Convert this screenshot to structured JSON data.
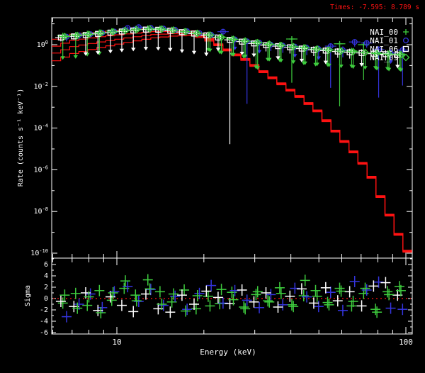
{
  "title": {
    "text": "Times: -7.595: 8.789 s",
    "color": "#ff1212"
  },
  "legend": [
    {
      "label": "NAI_00",
      "symbol": "plus",
      "color": "#3ecc3e"
    },
    {
      "label": "NAI_01",
      "symbol": "circle",
      "color": "#3535e0"
    },
    {
      "label": "NAI_06",
      "symbol": "square",
      "color": "#ffffff"
    },
    {
      "label": "NAI_09",
      "symbol": "diamond",
      "color": "#3ecc3e"
    }
  ],
  "axes": {
    "x": {
      "label": "Energy (keV)",
      "scale": "log",
      "min": 5.95,
      "max": 105,
      "major_ticks": [
        10,
        100
      ],
      "major_labels": [
        "10",
        "100"
      ],
      "minor_ticks": [
        6,
        7,
        8,
        9,
        20,
        30,
        40,
        50,
        60,
        70,
        80,
        90
      ]
    },
    "y_main": {
      "label": "Rate (counts s⁻¹ keV⁻¹)",
      "scale": "log",
      "min_log": -10.35,
      "max_log": 1.29,
      "labeled_exponents": [
        0,
        -2,
        -4,
        -6,
        -8,
        -10
      ]
    },
    "y_sigma": {
      "label": "Sigma",
      "min": -6.6,
      "max": 7.1,
      "labeled_ticks": [
        6,
        4,
        2,
        0,
        -2,
        -4,
        -6
      ]
    }
  },
  "chart_data": {
    "type": "scatter",
    "title": "Times: -7.595: 8.789 s",
    "xlabel": "Energy (keV)",
    "ylabel_main": "Rate (counts s⁻¹ keV⁻¹)",
    "ylabel_residual": "Sigma",
    "xlim": [
      5.95,
      105
    ],
    "ylim_main_log10": [
      -10.35,
      1.29
    ],
    "ylim_residual": [
      -6.6,
      7.1
    ],
    "zero_line": {
      "value": 0,
      "color": "#ff1212",
      "style": "dotted"
    },
    "model": {
      "color": "#ff1212",
      "steps": 40,
      "anchors_logE": [
        0.775,
        0.85,
        0.95,
        1.05,
        1.13,
        1.2,
        1.26,
        1.3,
        1.335,
        1.4,
        1.45,
        1.49,
        1.57,
        1.64,
        1.7,
        1.755,
        1.8,
        1.84,
        1.885,
        1.92,
        1.96,
        1.995,
        2.021
      ],
      "anchors_logR": [
        0.2,
        0.5,
        0.63,
        0.72,
        0.77,
        0.74,
        0.66,
        0.45,
        0.17,
        -0.35,
        -0.7,
        -1.09,
        -1.84,
        -2.52,
        -3.2,
        -4.08,
        -4.8,
        -5.44,
        -6.4,
        -7.48,
        -8.6,
        -9.7,
        -10.1
      ],
      "offsets_logR_low": [
        0,
        -0.34,
        -0.68,
        -1.06
      ],
      "offsets_logR_high": [
        0,
        -0.03,
        -0.06,
        -0.09
      ],
      "converge_logE": 1.335
    },
    "series": [
      {
        "name": "NAI_00",
        "symbol": "plus",
        "color": "#3ecc3e",
        "points": [
          [
            6.5,
            2.7,
            0.07,
            1.15,
            1
          ],
          [
            7.2,
            3.0,
            0.07,
            1.15,
            1
          ],
          [
            7.9,
            3.4,
            0.08,
            1.2,
            1
          ],
          [
            8.7,
            3.9,
            0.08,
            1.2,
            1
          ],
          [
            9.6,
            4.5,
            0.75,
            1.3,
            0
          ],
          [
            10.6,
            5.1,
            0.8,
            1.25,
            0
          ],
          [
            11.6,
            5.8,
            0.8,
            1.25,
            0
          ],
          [
            12.8,
            6.3,
            0.8,
            1.2,
            0
          ],
          [
            14.1,
            6.1,
            0.8,
            1.2,
            0
          ],
          [
            15.5,
            5.3,
            0.8,
            1.25,
            0
          ],
          [
            17.1,
            4.5,
            0.78,
            1.3,
            0
          ],
          [
            18.8,
            3.7,
            0.75,
            1.3,
            0
          ],
          [
            20.7,
            3.1,
            0.15,
            1.2,
            1
          ],
          [
            22.7,
            2.35,
            0.15,
            1.25,
            1
          ],
          [
            25.0,
            1.95,
            0.14,
            1.25,
            1
          ],
          [
            27.5,
            1.5,
            0.14,
            1.3,
            1
          ],
          [
            30.3,
            1.35,
            0.05,
            1.3,
            1
          ],
          [
            33.3,
            1.05,
            0.15,
            1.3,
            1
          ],
          [
            36.6,
            0.98,
            0.15,
            1.35,
            1
          ],
          [
            40.3,
            1.87,
            0.008,
            1.2,
            0
          ],
          [
            44.3,
            0.75,
            0.14,
            1.35,
            1
          ],
          [
            48.7,
            0.6,
            0.15,
            1.4,
            1
          ],
          [
            53.6,
            0.58,
            0.15,
            1.4,
            1
          ],
          [
            59.0,
            1.1,
            0.001,
            1.25,
            0
          ],
          [
            64.9,
            0.5,
            0.15,
            1.4,
            1
          ],
          [
            71.4,
            1.0,
            0.02,
            1.3,
            0
          ],
          [
            78.5,
            0.42,
            0.15,
            1.45,
            1
          ],
          [
            86.4,
            0.38,
            0.15,
            1.45,
            1
          ],
          [
            95.0,
            0.36,
            0.15,
            1.5,
            1
          ]
        ],
        "sigma": [
          -0.8,
          0.9,
          -1.2,
          1.4,
          -0.3,
          1.8,
          0.6,
          3.3,
          1.2,
          -0.6,
          1.5,
          -1.8,
          0.4,
          -0.9,
          1.1,
          -1.5,
          0.7,
          -0.4,
          1.9,
          -1.1,
          0.5,
          1.4,
          -0.7,
          1.8,
          -1.3,
          0.9,
          -1.9,
          1.2,
          2.1
        ]
      },
      {
        "name": "NAI_01",
        "symbol": "circle",
        "color": "#3535e0",
        "points": [
          [
            6.7,
            2.4,
            0.6,
            1.4,
            0
          ],
          [
            7.4,
            2.8,
            0.65,
            1.35,
            0
          ],
          [
            8.1,
            3.2,
            0.7,
            1.3,
            0
          ],
          [
            8.9,
            3.7,
            0.72,
            1.3,
            0
          ],
          [
            9.8,
            4.3,
            0.75,
            1.3,
            0
          ],
          [
            10.9,
            6.3,
            0.8,
            1.2,
            0
          ],
          [
            11.9,
            6.9,
            0.82,
            1.18,
            0
          ],
          [
            13.1,
            6.4,
            0.82,
            1.18,
            0
          ],
          [
            14.5,
            5.9,
            0.8,
            1.2,
            0
          ],
          [
            15.9,
            5.2,
            0.8,
            1.2,
            0
          ],
          [
            17.5,
            4.4,
            0.78,
            1.25,
            0
          ],
          [
            19.3,
            3.6,
            0.75,
            1.3,
            0
          ],
          [
            21.2,
            3.0,
            0.7,
            1.3,
            0
          ],
          [
            23.3,
            4.2,
            0.75,
            1.25,
            0
          ],
          [
            25.6,
            1.8,
            0.3,
            1.3,
            1
          ],
          [
            28.2,
            1.45,
            0.001,
            1.3,
            0
          ],
          [
            31.1,
            1.25,
            0.3,
            1.3,
            1
          ],
          [
            34.1,
            1.0,
            0.5,
            1.4,
            0
          ],
          [
            37.5,
            0.9,
            0.45,
            1.4,
            0
          ],
          [
            41.3,
            0.8,
            0.3,
            1.4,
            1
          ],
          [
            45.4,
            0.7,
            0.45,
            1.45,
            0
          ],
          [
            49.9,
            0.62,
            0.3,
            1.45,
            1
          ],
          [
            54.9,
            0.85,
            0.01,
            1.35,
            0
          ],
          [
            60.5,
            0.55,
            0.45,
            1.5,
            0
          ],
          [
            66.5,
            1.35,
            0.6,
            1.25,
            0
          ],
          [
            73.2,
            1.2,
            0.6,
            1.3,
            0
          ],
          [
            80.5,
            0.58,
            0.005,
            1.45,
            0
          ],
          [
            88.6,
            0.4,
            0.3,
            1.5,
            1
          ],
          [
            97.4,
            0.55,
            0.02,
            1.5,
            0
          ]
        ],
        "sigma": [
          -3.2,
          -1.0,
          0.8,
          -1.6,
          1.2,
          2.1,
          -0.5,
          1.6,
          -1.2,
          0.4,
          -1.9,
          0.9,
          2.3,
          -0.8,
          1.4,
          -0.3,
          -1.6,
          0.7,
          -1.1,
          1.8,
          0.3,
          -1.4,
          1.1,
          -2.1,
          3.0,
          1.5,
          2.9,
          -1.7,
          -1.9
        ]
      },
      {
        "name": "NAI_06",
        "symbol": "square",
        "color": "#ffffff",
        "points": [
          [
            6.4,
            2.2,
            0.65,
            1.35,
            0
          ],
          [
            7.1,
            2.5,
            0.7,
            1.3,
            0
          ],
          [
            7.8,
            2.9,
            0.1,
            1.25,
            1
          ],
          [
            8.6,
            3.3,
            0.1,
            1.25,
            1
          ],
          [
            9.5,
            3.8,
            0.1,
            1.22,
            1
          ],
          [
            10.4,
            4.3,
            0.1,
            1.2,
            1
          ],
          [
            11.4,
            4.8,
            0.1,
            1.2,
            1
          ],
          [
            12.6,
            5.3,
            0.1,
            1.2,
            1
          ],
          [
            13.9,
            5.2,
            0.1,
            1.2,
            1
          ],
          [
            15.3,
            4.7,
            0.1,
            1.2,
            1
          ],
          [
            16.8,
            4.0,
            0.1,
            1.22,
            1
          ],
          [
            18.5,
            3.4,
            0.1,
            1.25,
            1
          ],
          [
            20.4,
            2.8,
            0.1,
            1.25,
            1
          ],
          [
            22.4,
            2.2,
            0.22,
            1.3,
            1
          ],
          [
            24.6,
            1.7,
            1e-05,
            1.3,
            0
          ],
          [
            27.1,
            1.4,
            0.22,
            1.3,
            1
          ],
          [
            29.8,
            1.15,
            0.22,
            1.3,
            1
          ],
          [
            32.8,
            0.95,
            0.5,
            1.4,
            0
          ],
          [
            36.1,
            0.85,
            0.22,
            1.35,
            1
          ],
          [
            39.7,
            0.75,
            0.5,
            1.4,
            0
          ],
          [
            43.6,
            0.65,
            0.22,
            1.4,
            1
          ],
          [
            48.0,
            0.57,
            0.5,
            1.45,
            0
          ],
          [
            52.8,
            0.52,
            0.22,
            1.45,
            1
          ],
          [
            58.1,
            0.47,
            0.5,
            1.45,
            0
          ],
          [
            63.9,
            0.43,
            0.5,
            1.5,
            0
          ],
          [
            70.3,
            0.4,
            0.22,
            1.5,
            1
          ],
          [
            77.3,
            0.37,
            0.5,
            1.5,
            0
          ],
          [
            85.1,
            0.35,
            0.5,
            1.55,
            0
          ],
          [
            93.6,
            0.33,
            0.22,
            1.55,
            1
          ]
        ],
        "sigma": [
          -0.5,
          -1.4,
          1.0,
          -2.1,
          0.3,
          -1.2,
          -2.3,
          0.8,
          -1.8,
          -2.4,
          0.6,
          -1.0,
          1.3,
          0.2,
          -0.9,
          1.5,
          -0.6,
          1.0,
          -1.5,
          0.4,
          1.7,
          -0.8,
          1.9,
          -0.4,
          1.2,
          -1.3,
          2.2,
          2.8,
          0.6
        ]
      },
      {
        "name": "NAI_09",
        "symbol": "diamond",
        "color": "#3ecc3e",
        "points": [
          [
            6.6,
            2.45,
            0.7,
            1.3,
            0
          ],
          [
            7.3,
            2.75,
            0.72,
            1.3,
            0
          ],
          [
            8.0,
            3.1,
            0.75,
            1.28,
            0
          ],
          [
            8.8,
            3.6,
            0.75,
            1.28,
            0
          ],
          [
            9.7,
            4.1,
            0.78,
            1.25,
            0
          ],
          [
            10.7,
            4.7,
            0.8,
            1.22,
            0
          ],
          [
            11.7,
            5.2,
            0.8,
            1.2,
            0
          ],
          [
            13.0,
            5.7,
            0.8,
            1.2,
            0
          ],
          [
            14.3,
            5.6,
            0.8,
            1.2,
            0
          ],
          [
            15.7,
            5.0,
            0.8,
            1.22,
            0
          ],
          [
            17.3,
            4.2,
            0.78,
            1.25,
            0
          ],
          [
            19.0,
            3.5,
            0.75,
            1.28,
            0
          ],
          [
            21.0,
            2.9,
            0.15,
            1.25,
            1
          ],
          [
            23.0,
            2.25,
            0.15,
            1.28,
            1
          ],
          [
            25.3,
            1.8,
            0.15,
            1.3,
            1
          ],
          [
            27.8,
            1.5,
            0.15,
            1.3,
            1
          ],
          [
            30.7,
            1.25,
            0.05,
            1.32,
            1
          ],
          [
            33.7,
            1.05,
            0.15,
            1.32,
            1
          ],
          [
            37.0,
            0.92,
            0.15,
            1.35,
            1
          ],
          [
            40.8,
            0.8,
            0.15,
            1.35,
            1
          ],
          [
            44.8,
            0.7,
            0.15,
            1.4,
            1
          ],
          [
            49.3,
            0.62,
            0.15,
            1.4,
            1
          ],
          [
            54.2,
            0.55,
            0.15,
            1.42,
            1
          ],
          [
            59.7,
            0.5,
            0.15,
            1.45,
            1
          ],
          [
            65.7,
            0.46,
            0.15,
            1.45,
            1
          ],
          [
            72.3,
            0.42,
            0.15,
            1.48,
            1
          ],
          [
            79.4,
            0.38,
            0.15,
            1.5,
            1
          ],
          [
            87.4,
            0.35,
            0.15,
            1.5,
            1
          ],
          [
            96.1,
            0.33,
            0.15,
            1.55,
            1
          ]
        ],
        "sigma": [
          0.6,
          -1.7,
          0.3,
          -2.5,
          1.0,
          3.1,
          -0.4,
          1.7,
          -1.0,
          0.8,
          -2.2,
          0.5,
          -1.3,
          1.6,
          -0.2,
          -1.8,
          1.2,
          -0.6,
          0.9,
          -1.4,
          3.2,
          0.4,
          -1.1,
          1.3,
          -0.5,
          1.8,
          -2.4,
          0.7,
          1.4
        ]
      }
    ]
  }
}
